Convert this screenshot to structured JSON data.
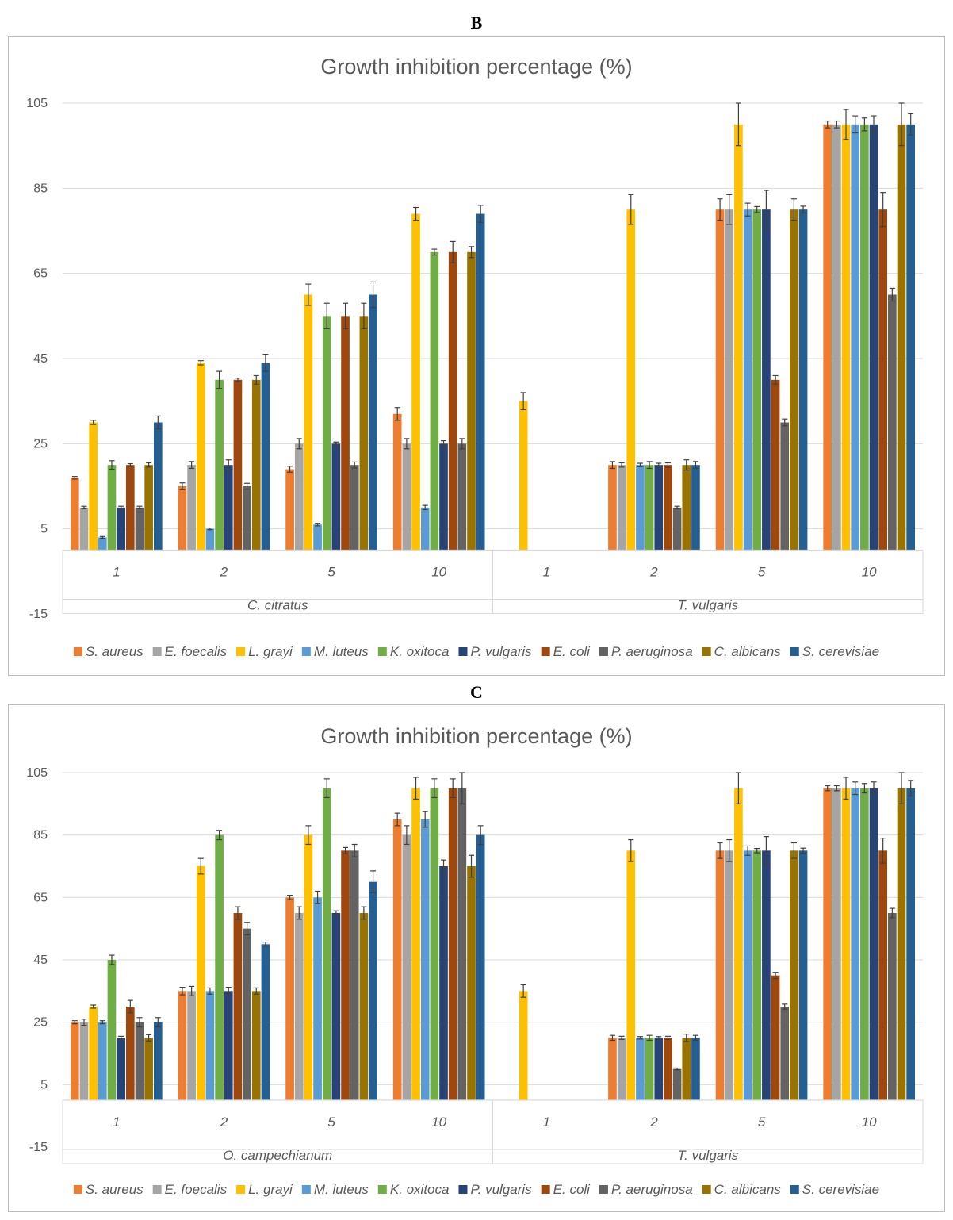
{
  "panels": [
    {
      "label": "B",
      "chart_data": {
        "type": "bar",
        "title": "Growth inhibition percentage (%)",
        "ylim": [
          -15,
          105
        ],
        "yticks": [
          -15,
          5,
          25,
          45,
          65,
          85,
          105
        ],
        "groups": [
          {
            "name": "C. citratus",
            "categories": [
              "1",
              "2",
              "5",
              "10"
            ]
          },
          {
            "name": "T. vulgaris",
            "categories": [
              "1",
              "2",
              "5",
              "10"
            ]
          }
        ],
        "series": [
          {
            "name": "S. aureus",
            "color": "#ED7D31",
            "values": [
              17,
              15,
              19,
              32,
              0,
              20,
              80,
              100
            ],
            "errors": [
              0.3,
              0.8,
              0.7,
              1.5,
              0,
              0.8,
              2.5,
              0.8
            ]
          },
          {
            "name": "E. foecalis",
            "color": "#A5A5A5",
            "values": [
              10,
              20,
              25,
              25,
              0,
              20,
              80,
              100
            ],
            "errors": [
              0.3,
              0.8,
              1.2,
              1.2,
              0,
              0.5,
              3.5,
              0.8
            ]
          },
          {
            "name": "L. grayi",
            "color": "#FFC000",
            "values": [
              30,
              44,
              60,
              79,
              35,
              80,
              100,
              100
            ],
            "errors": [
              0.5,
              0.5,
              2.5,
              1.5,
              2,
              3.5,
              5,
              3.5
            ]
          },
          {
            "name": "M. luteus",
            "color": "#5B9BD5",
            "values": [
              3,
              5,
              6,
              10,
              0,
              20,
              80,
              100
            ],
            "errors": [
              0.2,
              0.2,
              0.3,
              0.5,
              0,
              0.4,
              1.5,
              2
            ]
          },
          {
            "name": "K. oxitoca",
            "color": "#70AD47",
            "values": [
              20,
              40,
              55,
              70,
              0,
              20,
              80,
              100
            ],
            "errors": [
              1,
              2,
              3,
              0.7,
              0,
              0.8,
              0.7,
              1.5
            ]
          },
          {
            "name": "P. vulgaris",
            "color": "#264478",
            "values": [
              10,
              20,
              25,
              25,
              0,
              20,
              80,
              100
            ],
            "errors": [
              0.3,
              1.2,
              0.4,
              0.7,
              0,
              0.4,
              4.5,
              2
            ]
          },
          {
            "name": "E. coli",
            "color": "#9E480E",
            "values": [
              20,
              40,
              55,
              70,
              0,
              20,
              40,
              80
            ],
            "errors": [
              0.3,
              0.4,
              3,
              2.5,
              0,
              0.5,
              1,
              4
            ]
          },
          {
            "name": "P. aeruginosa",
            "color": "#636363",
            "values": [
              10,
              15,
              20,
              25,
              0,
              10,
              30,
              60
            ],
            "errors": [
              0.3,
              0.7,
              0.7,
              1.2,
              0,
              0.3,
              0.8,
              1.5
            ]
          },
          {
            "name": "C. albicans",
            "color": "#997300",
            "values": [
              20,
              40,
              55,
              70,
              0,
              20,
              80,
              100
            ],
            "errors": [
              0.5,
              1,
              3,
              1.3,
              0,
              1.2,
              2.5,
              5
            ]
          },
          {
            "name": "S. cerevisiae",
            "color": "#255E91",
            "values": [
              30,
              44,
              60,
              79,
              0,
              20,
              80,
              100
            ],
            "errors": [
              1.5,
              2,
              3,
              2,
              0,
              0.8,
              0.8,
              2.5
            ]
          }
        ]
      }
    },
    {
      "label": "C",
      "chart_data": {
        "type": "bar",
        "title": "Growth inhibition percentage (%)",
        "ylim": [
          -15,
          105
        ],
        "yticks": [
          -15,
          5,
          25,
          45,
          65,
          85,
          105
        ],
        "groups": [
          {
            "name": "O. campechianum",
            "categories": [
              "1",
              "2",
              "5",
              "10"
            ]
          },
          {
            "name": "T. vulgaris",
            "categories": [
              "1",
              "2",
              "5",
              "10"
            ]
          }
        ],
        "series": [
          {
            "name": "S. aureus",
            "color": "#ED7D31",
            "values": [
              25,
              35,
              65,
              90,
              0,
              20,
              80,
              100
            ],
            "errors": [
              0.5,
              1.2,
              0.7,
              2,
              0,
              0.8,
              2.5,
              0.8
            ]
          },
          {
            "name": "E. foecalis",
            "color": "#A5A5A5",
            "values": [
              25,
              35,
              60,
              85,
              0,
              20,
              80,
              100
            ],
            "errors": [
              1,
              1.5,
              2,
              3,
              0,
              0.5,
              3.5,
              0.8
            ]
          },
          {
            "name": "L. grayi",
            "color": "#FFC000",
            "values": [
              30,
              75,
              85,
              100,
              35,
              80,
              100,
              100
            ],
            "errors": [
              0.5,
              2.5,
              3,
              3.5,
              2,
              3.5,
              5,
              3.5
            ]
          },
          {
            "name": "M. luteus",
            "color": "#5B9BD5",
            "values": [
              25,
              35,
              65,
              90,
              0,
              20,
              80,
              100
            ],
            "errors": [
              0.5,
              1,
              2,
              2.5,
              0,
              0.4,
              1.5,
              2
            ]
          },
          {
            "name": "K. oxitoca",
            "color": "#70AD47",
            "values": [
              45,
              85,
              100,
              100,
              0,
              20,
              80,
              100
            ],
            "errors": [
              1.5,
              1.5,
              3,
              3,
              0,
              0.8,
              0.7,
              1.5
            ]
          },
          {
            "name": "P. vulgaris",
            "color": "#264478",
            "values": [
              20,
              35,
              60,
              75,
              0,
              20,
              80,
              100
            ],
            "errors": [
              0.5,
              1.2,
              0.7,
              2,
              0,
              0.4,
              4.5,
              2
            ]
          },
          {
            "name": "E. coli",
            "color": "#9E480E",
            "values": [
              30,
              60,
              80,
              100,
              0,
              20,
              40,
              80
            ],
            "errors": [
              2,
              2,
              1,
              3,
              0,
              0.5,
              1,
              4
            ]
          },
          {
            "name": "P. aeruginosa",
            "color": "#636363",
            "values": [
              25,
              55,
              80,
              100,
              0,
              10,
              30,
              60
            ],
            "errors": [
              1.5,
              2,
              2,
              5,
              0,
              0.3,
              0.8,
              1.5
            ]
          },
          {
            "name": "C. albicans",
            "color": "#997300",
            "values": [
              20,
              35,
              60,
              75,
              0,
              20,
              80,
              100
            ],
            "errors": [
              1,
              1,
              2,
              3.5,
              0,
              1.2,
              2.5,
              5
            ]
          },
          {
            "name": "S. cerevisiae",
            "color": "#255E91",
            "values": [
              25,
              50,
              70,
              85,
              0,
              20,
              80,
              100
            ],
            "errors": [
              1.5,
              0.7,
              3.5,
              3,
              0,
              0.8,
              0.8,
              2.5
            ]
          }
        ]
      }
    }
  ]
}
